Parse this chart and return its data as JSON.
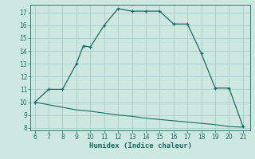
{
  "title": "",
  "xlabel": "Humidex (Indice chaleur)",
  "ylabel": "",
  "bg_color": "#cce8e0",
  "grid_color": "#aacccc",
  "line_color": "#1a6b60",
  "x_main": [
    6,
    7,
    8,
    9,
    9.5,
    10,
    11,
    12,
    13,
    14,
    15,
    16,
    17,
    18,
    19,
    20,
    21
  ],
  "y_main": [
    10,
    11,
    11,
    13,
    14.4,
    14.3,
    16,
    17.3,
    17.1,
    17.1,
    17.1,
    16.1,
    16.1,
    13.8,
    11.1,
    11.1,
    8.1
  ],
  "x_lower": [
    6,
    7,
    8,
    9,
    10,
    11,
    12,
    13,
    14,
    15,
    16,
    17,
    18,
    19,
    20,
    21
  ],
  "y_lower": [
    10.0,
    9.8,
    9.6,
    9.4,
    9.3,
    9.15,
    9.0,
    8.9,
    8.75,
    8.65,
    8.55,
    8.45,
    8.35,
    8.25,
    8.1,
    8.05
  ],
  "xlim": [
    5.7,
    21.5
  ],
  "ylim": [
    7.8,
    17.6
  ],
  "yticks": [
    8,
    9,
    10,
    11,
    12,
    13,
    14,
    15,
    16,
    17
  ],
  "xticks": [
    6,
    7,
    8,
    9,
    10,
    11,
    12,
    13,
    14,
    15,
    16,
    17,
    18,
    19,
    20,
    21
  ]
}
